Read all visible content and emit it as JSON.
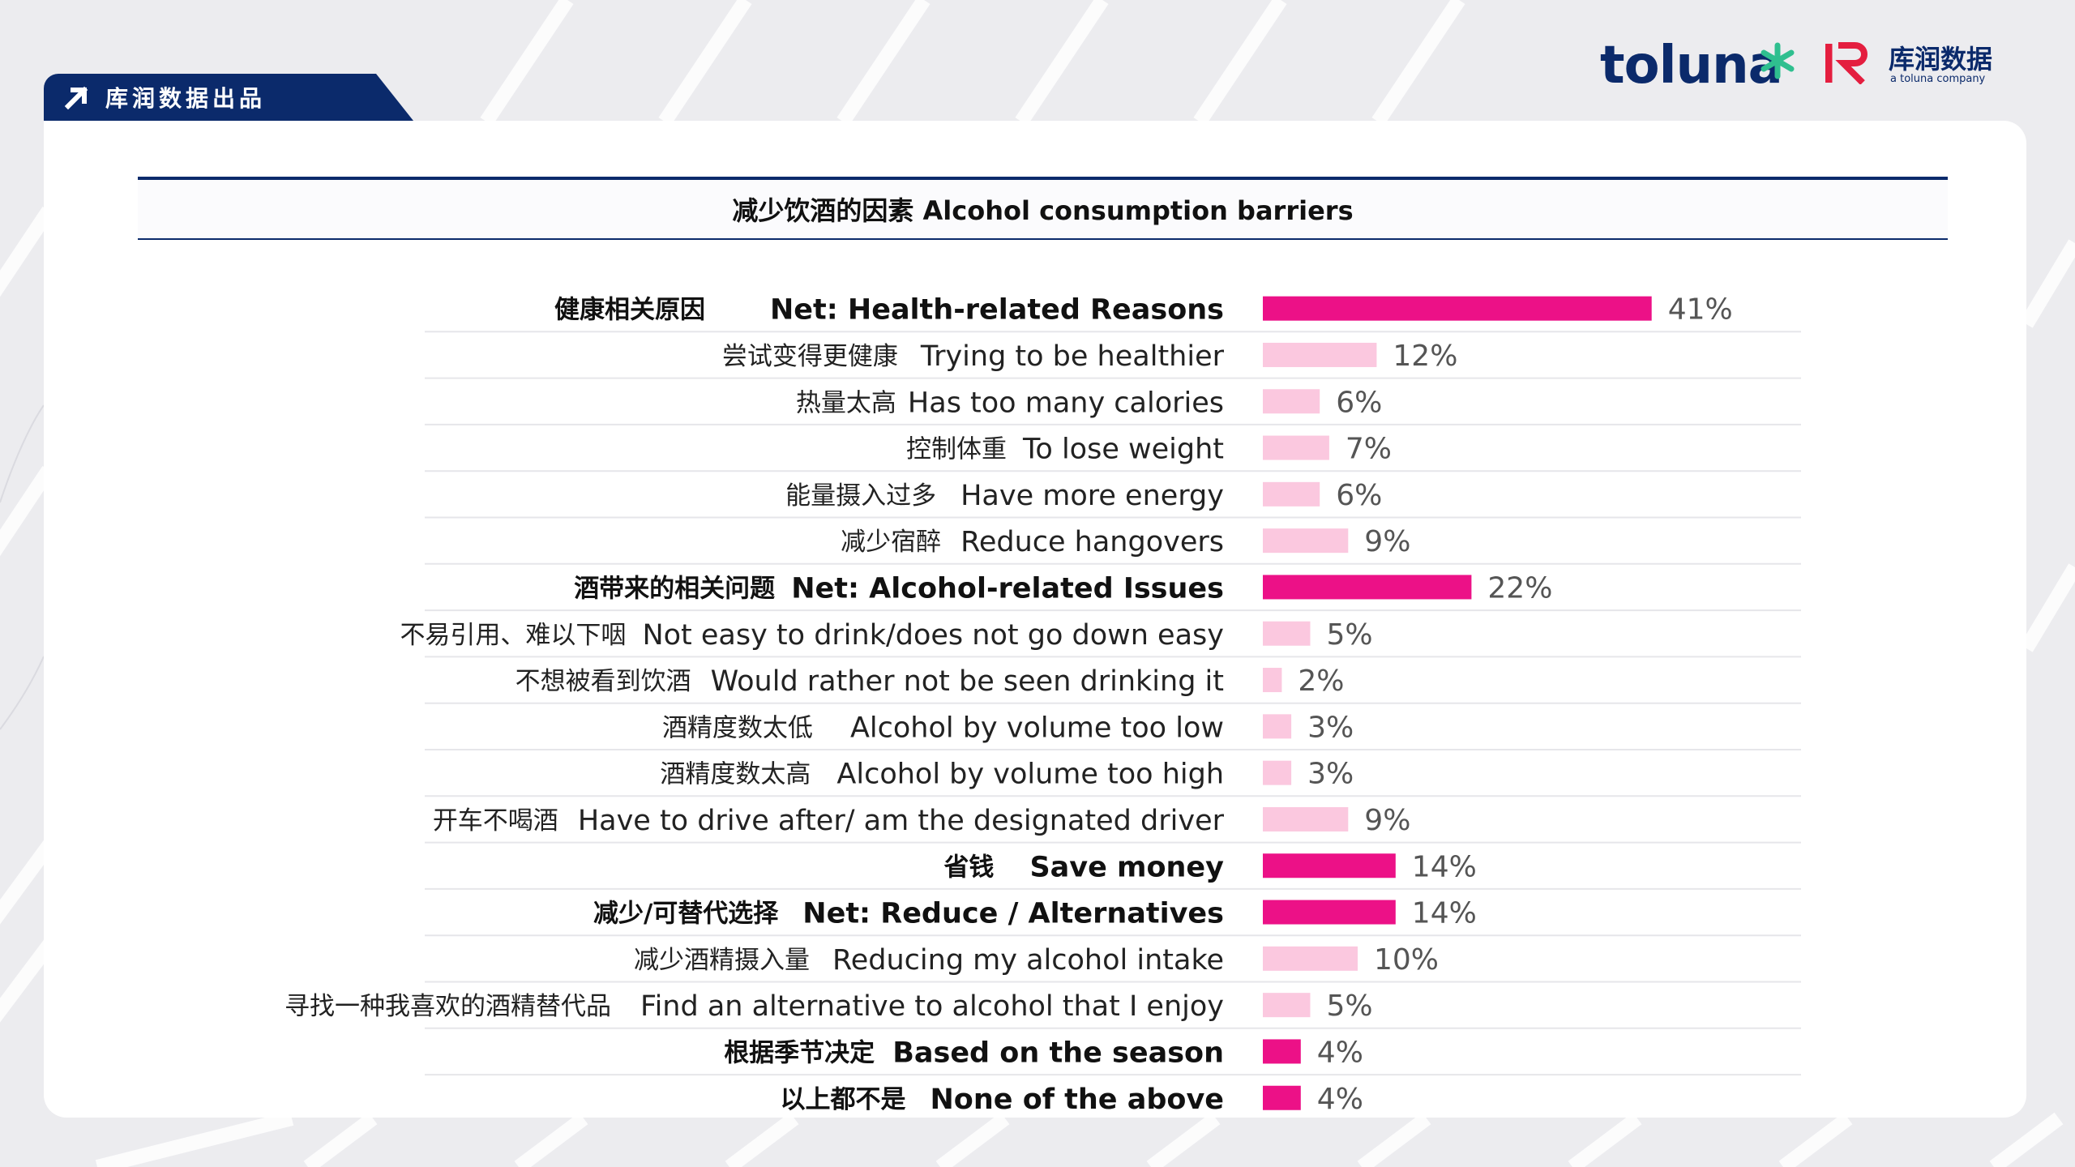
{
  "header": {
    "tab_label": "库润数据出品",
    "brand_toluna": "toluna",
    "brand_kr": "库润数据",
    "brand_kr_sub": "a toluna company"
  },
  "colors": {
    "navy": "#0b2a6b",
    "net_bar": "#ec1187",
    "sub_bar": "#fbc8df",
    "accent_green": "#2fbf8f"
  },
  "chart_data": {
    "type": "bar",
    "orientation": "horizontal",
    "title": "减少饮酒的因素 Alcohol consumption barriers",
    "xlim": [
      0,
      100
    ],
    "value_suffix": "%",
    "rows": [
      {
        "cn": "健康相关原因",
        "en": "Net: Health-related Reasons",
        "value": 41,
        "net": true
      },
      {
        "cn": "尝试变得更健康",
        "en": "Trying to be healthier",
        "value": 12,
        "net": false
      },
      {
        "cn": "热量太高",
        "en": "Has too many calories",
        "value": 6,
        "net": false
      },
      {
        "cn": "控制体重",
        "en": "To lose weight",
        "value": 7,
        "net": false
      },
      {
        "cn": "能量摄入过多",
        "en": "Have more energy",
        "value": 6,
        "net": false
      },
      {
        "cn": "减少宿醉",
        "en": "Reduce hangovers",
        "value": 9,
        "net": false
      },
      {
        "cn": "酒带来的相关问题",
        "en": "Net: Alcohol-related Issues",
        "value": 22,
        "net": true
      },
      {
        "cn": "不易引用、难以下咽",
        "en": "Not easy to drink/does not go down easy",
        "value": 5,
        "net": false
      },
      {
        "cn": "不想被看到饮酒",
        "en": "Would rather not be seen drinking it",
        "value": 2,
        "net": false
      },
      {
        "cn": "酒精度数太低",
        "en": "Alcohol by volume too low",
        "value": 3,
        "net": false
      },
      {
        "cn": "酒精度数太高",
        "en": "Alcohol by volume too high",
        "value": 3,
        "net": false
      },
      {
        "cn": "开车不喝酒",
        "en": "Have to drive after/ am the designated driver",
        "value": 9,
        "net": false
      },
      {
        "cn": "省钱",
        "en": "Save money",
        "value": 14,
        "net": true
      },
      {
        "cn": "减少/可替代选择",
        "en": "Net: Reduce / Alternatives",
        "value": 14,
        "net": true
      },
      {
        "cn": "减少酒精摄入量",
        "en": "Reducing my alcohol intake",
        "value": 10,
        "net": false
      },
      {
        "cn": "寻找一种我喜欢的酒精替代品",
        "en": "Find an alternative to alcohol that I enjoy",
        "value": 5,
        "net": false
      },
      {
        "cn": "根据季节决定",
        "en": "Based on the season",
        "value": 4,
        "net": true
      },
      {
        "cn": "以上都不是",
        "en": "None of the above",
        "value": 4,
        "net": true
      }
    ]
  }
}
